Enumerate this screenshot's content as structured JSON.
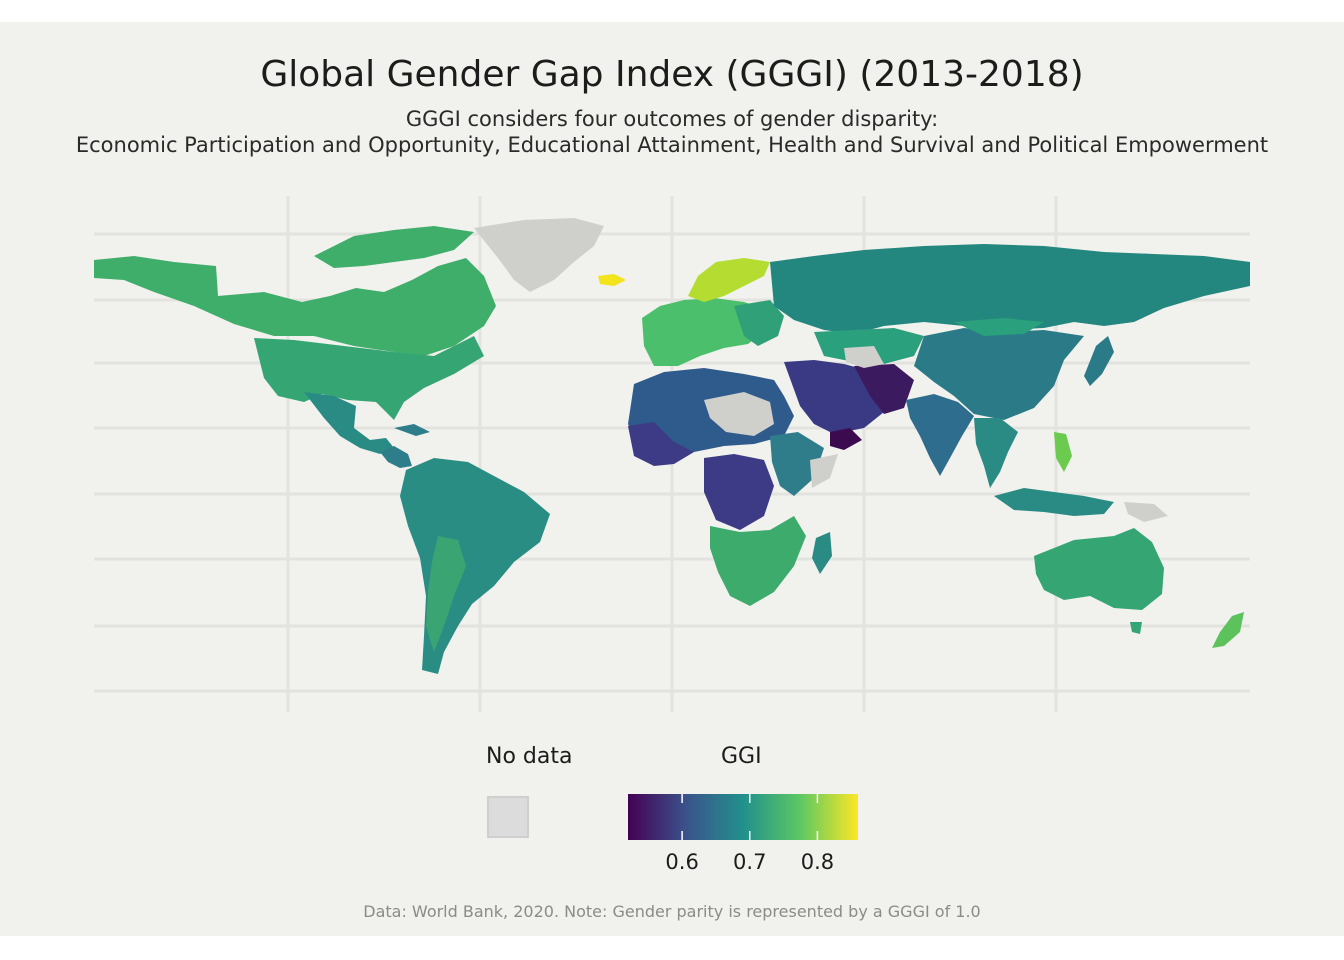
{
  "title": "Global Gender Gap Index (GGGI) (2013-2018)",
  "subtitle_line1": "GGGI considers four outcomes of gender disparity:",
  "subtitle_line2": "Economic Participation and Opportunity, Educational Attainment, Health and Survival and Political Empowerment",
  "legend": {
    "no_data_label": "No data",
    "no_data_color": "#dcdcdc",
    "scale_title": "GGI",
    "scale_min": 0.52,
    "scale_max": 0.86,
    "ticks": [
      {
        "value": 0.6,
        "label": "0.6"
      },
      {
        "value": 0.7,
        "label": "0.7"
      },
      {
        "value": 0.8,
        "label": "0.8"
      }
    ],
    "palette": [
      "#440154",
      "#3b528b",
      "#21908c",
      "#5dc863",
      "#fde725"
    ]
  },
  "caption": "Data: World Bank, 2020. Note: Gender parity is represented by a GGGI of 1.0",
  "colors": {
    "background": "#f1f1ed",
    "grid": "#e2e2de"
  },
  "map": {
    "regions": [
      {
        "name": "North America",
        "color": "#3fae6a"
      },
      {
        "name": "United States",
        "color": "#35a574"
      },
      {
        "name": "Mexico",
        "color": "#2a8a84"
      },
      {
        "name": "Central America",
        "color": "#2e7d8a"
      },
      {
        "name": "South America",
        "color": "#2a8d84"
      },
      {
        "name": "Greenland",
        "color": "#cfcfcc"
      },
      {
        "name": "Iceland",
        "color": "#f2e31b"
      },
      {
        "name": "Scandinavia",
        "color": "#b5dc30"
      },
      {
        "name": "Europe",
        "color": "#4bbf6b"
      },
      {
        "name": "Russia",
        "color": "#24877f"
      },
      {
        "name": "China",
        "color": "#2a7a88"
      },
      {
        "name": "Middle East",
        "color": "#3a3a84"
      },
      {
        "name": "Yemen",
        "color": "#3b0a4f"
      },
      {
        "name": "India",
        "color": "#2f6d8e"
      },
      {
        "name": "North Africa",
        "color": "#2f5b8c"
      },
      {
        "name": "Central Africa",
        "color": "#3d3b85"
      },
      {
        "name": "Southern Africa",
        "color": "#3cab6b"
      },
      {
        "name": "Australia",
        "color": "#35a573"
      },
      {
        "name": "New Zealand",
        "color": "#5cc25c"
      },
      {
        "name": "Philippines",
        "color": "#6bcb4f"
      },
      {
        "name": "Southeast Asia",
        "color": "#2a8a84"
      },
      {
        "name": "Kazakhstan",
        "color": "#2aa07c"
      }
    ]
  }
}
